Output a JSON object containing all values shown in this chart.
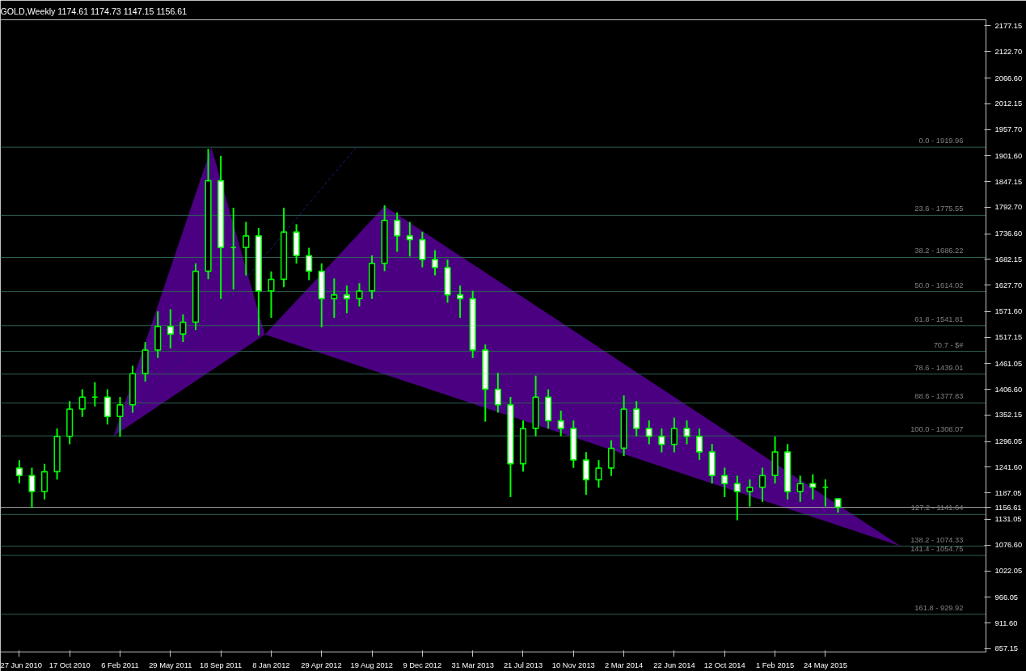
{
  "chart_data": {
    "type": "candlestick",
    "title": "GOLD,Weekly  1174.61 1174.73 1147.15 1156.61",
    "color": "#00ff00",
    "x": [
      "2010-06-27",
      "2010-07-25",
      "2010-08-22",
      "2010-09-19",
      "2010-10-17",
      "2010-11-14",
      "2010-12-12",
      "2011-01-09",
      "2011-02-06",
      "2011-03-06",
      "2011-04-03",
      "2011-05-01",
      "2011-05-29",
      "2011-06-26",
      "2011-07-24",
      "2011-08-21",
      "2011-09-18",
      "2011-10-16",
      "2011-11-13",
      "2011-12-11",
      "2012-01-08",
      "2012-02-05",
      "2012-03-04",
      "2012-04-01",
      "2012-04-29",
      "2012-05-27",
      "2012-06-24",
      "2012-07-22",
      "2012-08-19",
      "2012-09-16",
      "2012-10-14",
      "2012-11-11",
      "2012-12-09",
      "2013-01-06",
      "2013-02-03",
      "2013-03-03",
      "2013-03-31",
      "2013-04-28",
      "2013-05-26",
      "2013-06-23",
      "2013-07-21",
      "2013-08-18",
      "2013-09-15",
      "2013-10-13",
      "2013-11-10",
      "2013-12-08",
      "2014-01-05",
      "2014-02-02",
      "2014-03-02",
      "2014-03-30",
      "2014-04-27",
      "2014-05-25",
      "2014-06-22",
      "2014-07-20",
      "2014-08-17",
      "2014-09-14",
      "2014-10-12",
      "2014-11-09",
      "2014-12-07",
      "2015-01-04",
      "2015-02-01",
      "2015-03-01",
      "2015-03-29",
      "2015-04-26",
      "2015-05-24",
      "2015-06-21"
    ],
    "ohlc": [
      [
        1240,
        1255,
        1209,
        1224
      ],
      [
        1224,
        1239,
        1157,
        1190
      ],
      [
        1190,
        1247,
        1175,
        1232
      ],
      [
        1232,
        1322,
        1217,
        1307
      ],
      [
        1307,
        1380,
        1292,
        1365
      ],
      [
        1365,
        1405,
        1350,
        1390
      ],
      [
        1390,
        1420,
        1372,
        1390
      ],
      [
        1390,
        1405,
        1334,
        1349
      ],
      [
        1349,
        1389,
        1308,
        1374
      ],
      [
        1374,
        1455,
        1359,
        1440
      ],
      [
        1440,
        1505,
        1425,
        1490
      ],
      [
        1490,
        1570,
        1475,
        1540
      ],
      [
        1540,
        1575,
        1495,
        1524
      ],
      [
        1524,
        1564,
        1509,
        1549
      ],
      [
        1549,
        1672,
        1534,
        1657
      ],
      [
        1657,
        1915,
        1642,
        1849
      ],
      [
        1849,
        1900,
        1600,
        1707
      ],
      [
        1707,
        1790,
        1620,
        1707
      ],
      [
        1707,
        1760,
        1650,
        1732
      ],
      [
        1732,
        1747,
        1523,
        1615
      ],
      [
        1615,
        1655,
        1560,
        1640
      ],
      [
        1640,
        1790,
        1625,
        1740
      ],
      [
        1740,
        1755,
        1675,
        1690
      ],
      [
        1690,
        1705,
        1640,
        1657
      ],
      [
        1657,
        1672,
        1540,
        1599
      ],
      [
        1599,
        1640,
        1560,
        1607
      ],
      [
        1607,
        1625,
        1570,
        1599
      ],
      [
        1599,
        1630,
        1584,
        1615
      ],
      [
        1615,
        1689,
        1600,
        1674
      ],
      [
        1674,
        1795,
        1659,
        1765
      ],
      [
        1765,
        1780,
        1700,
        1732
      ],
      [
        1732,
        1760,
        1690,
        1724
      ],
      [
        1724,
        1739,
        1667,
        1682
      ],
      [
        1682,
        1700,
        1650,
        1665
      ],
      [
        1665,
        1680,
        1592,
        1607
      ],
      [
        1607,
        1625,
        1560,
        1599
      ],
      [
        1599,
        1614,
        1475,
        1490
      ],
      [
        1490,
        1500,
        1340,
        1407
      ],
      [
        1407,
        1440,
        1359,
        1374
      ],
      [
        1374,
        1389,
        1180,
        1249
      ],
      [
        1249,
        1339,
        1234,
        1324
      ],
      [
        1324,
        1434,
        1309,
        1390
      ],
      [
        1390,
        1405,
        1325,
        1340
      ],
      [
        1340,
        1360,
        1309,
        1324
      ],
      [
        1324,
        1339,
        1242,
        1257
      ],
      [
        1257,
        1272,
        1185,
        1215
      ],
      [
        1215,
        1255,
        1200,
        1240
      ],
      [
        1240,
        1297,
        1225,
        1282
      ],
      [
        1282,
        1392,
        1267,
        1365
      ],
      [
        1365,
        1380,
        1309,
        1324
      ],
      [
        1324,
        1339,
        1292,
        1307
      ],
      [
        1307,
        1322,
        1275,
        1290
      ],
      [
        1290,
        1345,
        1275,
        1324
      ],
      [
        1324,
        1339,
        1292,
        1307
      ],
      [
        1307,
        1322,
        1259,
        1274
      ],
      [
        1274,
        1289,
        1209,
        1224
      ],
      [
        1224,
        1239,
        1180,
        1207
      ],
      [
        1207,
        1222,
        1131,
        1190
      ],
      [
        1190,
        1214,
        1160,
        1199
      ],
      [
        1199,
        1239,
        1170,
        1224
      ],
      [
        1224,
        1305,
        1209,
        1274
      ],
      [
        1274,
        1289,
        1175,
        1190
      ],
      [
        1190,
        1222,
        1170,
        1207
      ],
      [
        1207,
        1225,
        1175,
        1199
      ],
      [
        1199,
        1214,
        1160,
        1199
      ],
      [
        1174.61,
        1174.73,
        1147.15,
        1156.61
      ]
    ],
    "series": [
      {
        "type": "area",
        "color": "#4b0082",
        "x": [
          "2011-01-23",
          "2011-08-28",
          "2011-12-25",
          "2011-01-23"
        ],
        "values": [
          1308,
          1920,
          1523,
          1308
        ]
      },
      {
        "type": "area",
        "color": "#4b0082",
        "x": [
          "2011-12-25",
          "2012-09-16",
          "2015-11-08",
          "2011-12-25"
        ],
        "values": [
          1523,
          1795,
          1074,
          1523
        ]
      },
      {
        "type": "line",
        "color": "#1a1a80",
        "line_style": "dashed",
        "x": [
          "2011-01-23",
          "2012-07-15"
        ],
        "values": [
          1308,
          1920
        ]
      }
    ],
    "xlim": [
      "2010-05-16",
      "2016-05-15"
    ],
    "xticks": [
      {
        "value": "2010-06-27",
        "label": "27 Jun 2010"
      },
      {
        "value": "2010-10-17",
        "label": "17 Oct 2010"
      },
      {
        "value": "2011-02-06",
        "label": "6 Feb 2011"
      },
      {
        "value": "2011-05-29",
        "label": "29 May 2011"
      },
      {
        "value": "2011-09-18",
        "label": "18 Sep 2011"
      },
      {
        "value": "2012-01-08",
        "label": "8 Jan 2012"
      },
      {
        "value": "2012-04-29",
        "label": "29 Apr 2012"
      },
      {
        "value": "2012-08-19",
        "label": "19 Aug 2012"
      },
      {
        "value": "2012-12-09",
        "label": "9 Dec 2012"
      },
      {
        "value": "2013-03-31",
        "label": "31 Mar 2013"
      },
      {
        "value": "2013-07-21",
        "label": "21 Jul 2013"
      },
      {
        "value": "2013-11-10",
        "label": "10 Nov 2013"
      },
      {
        "value": "2014-03-02",
        "label": "2 Mar 2014"
      },
      {
        "value": "2014-06-22",
        "label": "22 Jun 2014"
      },
      {
        "value": "2014-10-12",
        "label": "12 Oct 2014"
      },
      {
        "value": "2015-02-01",
        "label": "1 Feb 2015"
      },
      {
        "value": "2015-05-24",
        "label": "24 May 2015"
      }
    ],
    "ylim": [
      850,
      2190
    ],
    "yticks": [
      {
        "value": 857.15,
        "label": "857.15"
      },
      {
        "value": 911.6,
        "label": "911.60"
      },
      {
        "value": 966.05,
        "label": "966.05"
      },
      {
        "value": 1022.05,
        "label": "1022.05"
      },
      {
        "value": 1076.6,
        "label": "1076.60"
      },
      {
        "value": 1131.05,
        "label": "1131.05"
      },
      {
        "value": 1156.61,
        "label": "1156.61"
      },
      {
        "value": 1187.05,
        "label": "1187.05"
      },
      {
        "value": 1241.6,
        "label": "1241.60"
      },
      {
        "value": 1296.05,
        "label": "1296.05"
      },
      {
        "value": 1352.15,
        "label": "1352.15"
      },
      {
        "value": 1406.6,
        "label": "1406.60"
      },
      {
        "value": 1461.05,
        "label": "1461.05"
      },
      {
        "value": 1517.15,
        "label": "1517.15"
      },
      {
        "value": 1571.6,
        "label": "1571.60"
      },
      {
        "value": 1627.7,
        "label": "1627.70"
      },
      {
        "value": 1682.15,
        "label": "1682.15"
      },
      {
        "value": 1736.6,
        "label": "1736.60"
      },
      {
        "value": 1792.7,
        "label": "1792.70"
      },
      {
        "value": 1847.15,
        "label": "1847.15"
      },
      {
        "value": 1901.6,
        "label": "1901.60"
      },
      {
        "value": 1957.7,
        "label": "1957.70"
      },
      {
        "value": 2012.15,
        "label": "2012.15"
      },
      {
        "value": 2066.6,
        "label": "2066.60"
      },
      {
        "value": 2122.7,
        "label": "2122.70"
      },
      {
        "value": 2177.15,
        "label": "2177.15"
      }
    ],
    "ref_lines": [
      {
        "axis": "y",
        "value": 1919.96,
        "color": "#2f5f55"
      },
      {
        "axis": "y",
        "value": 1775.55,
        "color": "#2f5f55"
      },
      {
        "axis": "y",
        "value": 1686.22,
        "color": "#2f5f55"
      },
      {
        "axis": "y",
        "value": 1614.02,
        "color": "#2f5f55"
      },
      {
        "axis": "y",
        "value": 1541.81,
        "color": "#2f5f55"
      },
      {
        "axis": "y",
        "value": 1487.36,
        "color": "#2f5f55"
      },
      {
        "axis": "y",
        "value": 1439.01,
        "color": "#2f5f55"
      },
      {
        "axis": "y",
        "value": 1377.83,
        "color": "#2f5f55"
      },
      {
        "axis": "y",
        "value": 1308.07,
        "color": "#2f5f55"
      },
      {
        "axis": "y",
        "value": 1141.64,
        "color": "#2f5f55"
      },
      {
        "axis": "y",
        "value": 1074.33,
        "color": "#2f5f55"
      },
      {
        "axis": "y",
        "value": 1054.75,
        "color": "#2f5f55"
      },
      {
        "axis": "y",
        "value": 929.92,
        "color": "#2f5f55"
      },
      {
        "axis": "y",
        "value": 1156.61,
        "color": "#a0a0a0"
      }
    ],
    "annotations": [
      {
        "text": "0.0 - 1919.96",
        "y": 1919.96
      },
      {
        "text": "23.6 - 1775.55",
        "y": 1775.55
      },
      {
        "text": "38.2 - 1686.22",
        "y": 1686.22
      },
      {
        "text": "50.0 - 1614.02",
        "y": 1614.02
      },
      {
        "text": "61.8 - 1541.81",
        "y": 1541.81
      },
      {
        "text": "70.7 - $#",
        "y": 1487.36
      },
      {
        "text": "78.6 - 1439.01",
        "y": 1439.01
      },
      {
        "text": "88.6 - 1377.83",
        "y": 1377.83
      },
      {
        "text": "100.0 - 1308.07",
        "y": 1308.07
      },
      {
        "text": "127.2 - 1141.64",
        "y": 1141.64
      },
      {
        "text": "138.2 - 1074.33",
        "y": 1074.33
      },
      {
        "text": "141.4 - 1054.75",
        "y": 1054.75
      },
      {
        "text": "161.8 - 929.92",
        "y": 929.92
      }
    ],
    "grid": false
  }
}
